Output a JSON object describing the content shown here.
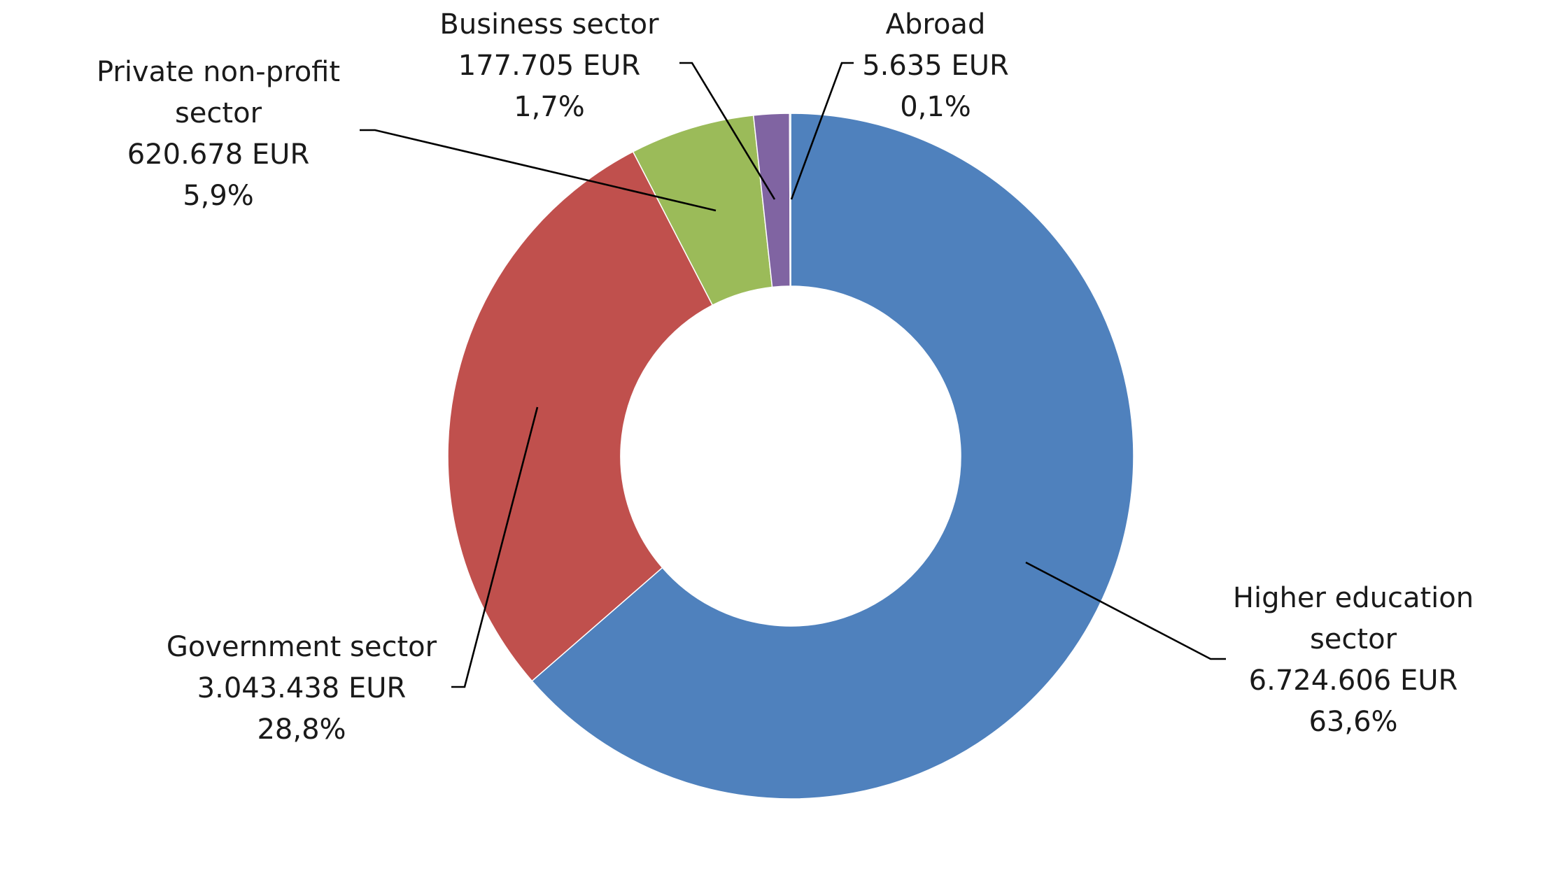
{
  "chart_data": {
    "type": "pie",
    "variant": "donut",
    "title": "",
    "unit": "EUR",
    "slices": [
      {
        "name_lines": [
          "Higher education",
          "sector"
        ],
        "value": "6.724.606 EUR",
        "amount": 6724606,
        "percent": "63,6%",
        "share": 63.6,
        "color": "#4F81BD"
      },
      {
        "name_lines": [
          "Government sector"
        ],
        "value": "3.043.438 EUR",
        "amount": 3043438,
        "percent": "28,8%",
        "share": 28.8,
        "color": "#C0504D"
      },
      {
        "name_lines": [
          "Private non-profit",
          "sector"
        ],
        "value": "620.678 EUR",
        "amount": 620678,
        "percent": "5,9%",
        "share": 5.9,
        "color": "#9BBB59"
      },
      {
        "name_lines": [
          "Business sector"
        ],
        "value": "177.705 EUR",
        "amount": 177705,
        "percent": "1,7%",
        "share": 1.7,
        "color": "#8064A2"
      },
      {
        "name_lines": [
          "Abroad"
        ],
        "value": "5.635 EUR",
        "amount": 5635,
        "percent": "0,1%",
        "share": 0.1,
        "color": "#4BACC6"
      }
    ]
  }
}
